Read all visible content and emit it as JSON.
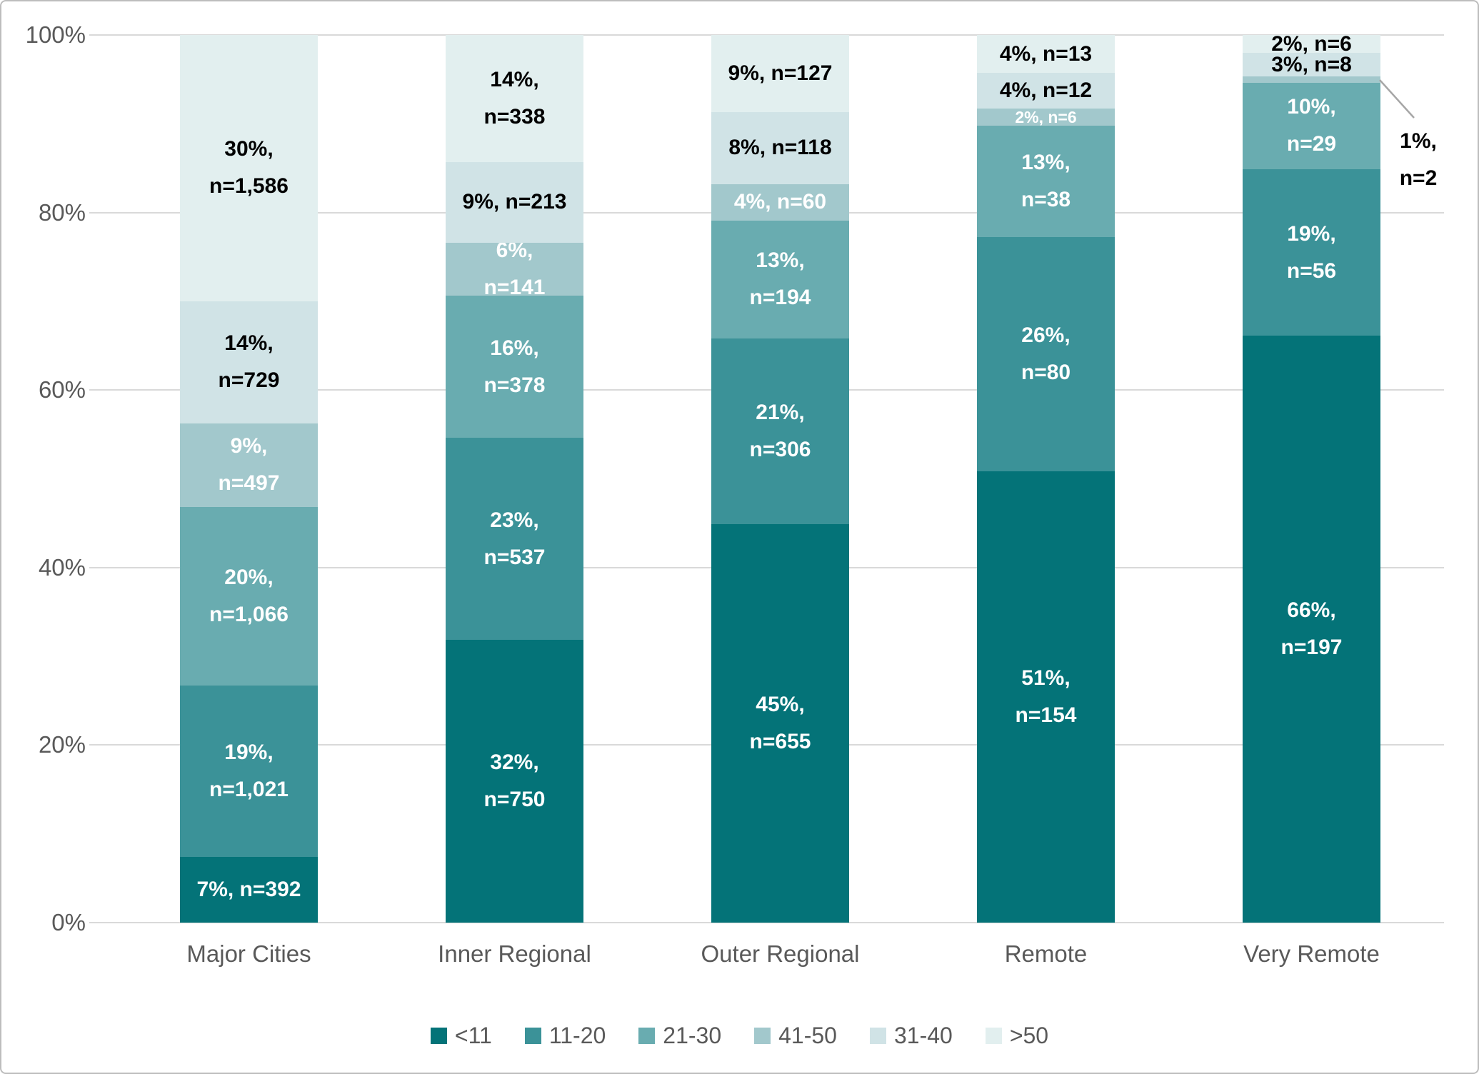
{
  "chart_data": {
    "type": "bar",
    "stacked": true,
    "title": "",
    "categories": [
      "Major Cities",
      "Inner Regional",
      "Outer Regional",
      "Remote",
      "Very Remote"
    ],
    "stack_order_bottom_to_top": [
      "<11",
      "11-20",
      "21-30",
      "41-50",
      "31-40",
      ">50"
    ],
    "series": [
      {
        "name": "<11",
        "color": "#047378",
        "label_color": "#ffffff",
        "points": [
          {
            "pct": 7,
            "n": 392,
            "pct_label": "7%",
            "n_label": "n=392",
            "lines": 1
          },
          {
            "pct": 32,
            "n": 750,
            "pct_label": "32%",
            "n_label": "n=750",
            "lines": 2
          },
          {
            "pct": 45,
            "n": 655,
            "pct_label": "45%",
            "n_label": "n=655",
            "lines": 2
          },
          {
            "pct": 51,
            "n": 154,
            "pct_label": "51%",
            "n_label": "n=154",
            "lines": 2
          },
          {
            "pct": 66,
            "n": 197,
            "pct_label": "66%",
            "n_label": "n=197",
            "lines": 2
          }
        ]
      },
      {
        "name": "11-20",
        "color": "#3B9298",
        "label_color": "#ffffff",
        "points": [
          {
            "pct": 19,
            "n": 1021,
            "pct_label": "19%",
            "n_label": "n=1,021",
            "lines": 2
          },
          {
            "pct": 23,
            "n": 537,
            "pct_label": "23%",
            "n_label": "n=537",
            "lines": 2
          },
          {
            "pct": 21,
            "n": 306,
            "pct_label": "21%",
            "n_label": "n=306",
            "lines": 2
          },
          {
            "pct": 26,
            "n": 80,
            "pct_label": "26%",
            "n_label": "n=80",
            "lines": 2
          },
          {
            "pct": 19,
            "n": 56,
            "pct_label": "19%",
            "n_label": "n=56",
            "lines": 2
          }
        ]
      },
      {
        "name": "21-30",
        "color": "#69ACB0",
        "label_color": "#ffffff",
        "points": [
          {
            "pct": 20,
            "n": 1066,
            "pct_label": "20%",
            "n_label": "n=1,066",
            "lines": 2
          },
          {
            "pct": 16,
            "n": 378,
            "pct_label": "16%",
            "n_label": "n=378",
            "lines": 2
          },
          {
            "pct": 13,
            "n": 194,
            "pct_label": "13%",
            "n_label": "n=194",
            "lines": 2
          },
          {
            "pct": 13,
            "n": 38,
            "pct_label": "13%",
            "n_label": "n=38",
            "lines": 2
          },
          {
            "pct": 10,
            "n": 29,
            "pct_label": "10%",
            "n_label": "n=29",
            "lines": 2
          }
        ]
      },
      {
        "name": "41-50",
        "color": "#A2C8CC",
        "label_color": "#ffffff",
        "points": [
          {
            "pct": 9,
            "n": 497,
            "pct_label": "9%",
            "n_label": "n=497",
            "lines": 2
          },
          {
            "pct": 6,
            "n": 141,
            "pct_label": "6%",
            "n_label": "n=141",
            "lines": 2
          },
          {
            "pct": 4,
            "n": 60,
            "pct_label": "4%",
            "n_label": "n=60",
            "lines": 1
          },
          {
            "pct": 2,
            "n": 6,
            "pct_label": "2%",
            "n_label": "n=6",
            "lines": 1,
            "small": true
          },
          {
            "pct": 1,
            "n": 2,
            "pct_label": "1%",
            "n_label": "n=2",
            "lines": 2,
            "callout": true
          }
        ]
      },
      {
        "name": "31-40",
        "color": "#D0E3E6",
        "label_color": "#000000",
        "points": [
          {
            "pct": 14,
            "n": 729,
            "pct_label": "14%",
            "n_label": "n=729",
            "lines": 2
          },
          {
            "pct": 9,
            "n": 213,
            "pct_label": "9%",
            "n_label": "n=213",
            "lines": 1
          },
          {
            "pct": 8,
            "n": 118,
            "pct_label": "8%",
            "n_label": "n=118",
            "lines": 1
          },
          {
            "pct": 4,
            "n": 12,
            "pct_label": "4%",
            "n_label": "n=12",
            "lines": 1
          },
          {
            "pct": 3,
            "n": 8,
            "pct_label": "3%",
            "n_label": "n=8",
            "lines": 1
          }
        ]
      },
      {
        "name": ">50",
        "color": "#E2EFEF",
        "label_color": "#000000",
        "points": [
          {
            "pct": 30,
            "n": 1586,
            "pct_label": "30%",
            "n_label": "n=1,586",
            "lines": 2
          },
          {
            "pct": 14,
            "n": 338,
            "pct_label": "14%",
            "n_label": "n=338",
            "lines": 2
          },
          {
            "pct": 9,
            "n": 127,
            "pct_label": "9%",
            "n_label": "n=127",
            "lines": 1
          },
          {
            "pct": 4,
            "n": 13,
            "pct_label": "4%",
            "n_label": "n=13",
            "lines": 1
          },
          {
            "pct": 2,
            "n": 6,
            "pct_label": "2%",
            "n_label": "n=6",
            "lines": 1
          }
        ]
      }
    ],
    "y_axis": {
      "min": 0,
      "max": 100,
      "tick_labels": [
        "0%",
        "20%",
        "40%",
        "60%",
        "80%",
        "100%"
      ],
      "grid": true
    },
    "x_axis": {
      "tick_labels": [
        "Major Cities",
        "Inner Regional",
        "Outer Regional",
        "Remote",
        "Very Remote"
      ]
    },
    "legend": {
      "position": "bottom",
      "items": [
        {
          "label": "<11",
          "color": "#047378"
        },
        {
          "label": "11-20",
          "color": "#3B9298"
        },
        {
          "label": "21-30",
          "color": "#69ACB0"
        },
        {
          "label": "41-50",
          "color": "#A2C8CC"
        },
        {
          "label": "31-40",
          "color": "#D0E3E6"
        },
        {
          "label": ">50",
          "color": "#E2EFEF"
        }
      ]
    },
    "callout": {
      "line1": "1%,",
      "line2": "n=2",
      "target_category": "Very Remote",
      "target_series": "41-50"
    }
  },
  "colors": {
    "axis_text": "#595959",
    "gridline": "#D9D9D9",
    "border": "#BDBDBD",
    "background": "#FFFFFF",
    "callout_line": "#A6A6A6"
  }
}
